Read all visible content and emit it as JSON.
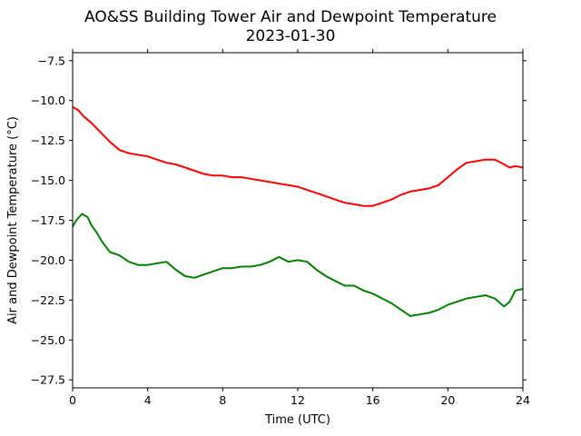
{
  "chart_data": {
    "type": "line",
    "title": "AO&SS Building Tower Air and Dewpoint Temperature",
    "subtitle": "2023-01-30",
    "xlabel": "Time (UTC)",
    "ylabel": "Air and Dewpoint Temperature (°C)",
    "xlim": [
      0,
      24
    ],
    "ylim": [
      -28,
      -7
    ],
    "xticks": [
      0,
      4,
      8,
      12,
      16,
      20,
      24
    ],
    "xtick_labels": [
      "0",
      "4",
      "8",
      "12",
      "16",
      "20",
      "24"
    ],
    "yticks": [
      -27.5,
      -25.0,
      -22.5,
      -20.0,
      -17.5,
      -15.0,
      -12.5,
      -10.0,
      -7.5
    ],
    "ytick_labels": [
      "−27.5",
      "−25.0",
      "−22.5",
      "−20.0",
      "−17.5",
      "−15.0",
      "−12.5",
      "−10.0",
      "−7.5"
    ],
    "grid": false,
    "series": [
      {
        "color": "#ff0000",
        "x": [
          0,
          0.3,
          0.6,
          1.0,
          1.5,
          2.0,
          2.5,
          3.0,
          3.5,
          4.0,
          4.5,
          5.0,
          5.5,
          6.0,
          6.5,
          7.0,
          7.5,
          8.0,
          8.5,
          9.0,
          9.5,
          10.0,
          10.5,
          11.0,
          11.5,
          12.0,
          12.5,
          13.0,
          13.5,
          14.0,
          14.5,
          15.0,
          15.5,
          16.0,
          16.5,
          17.0,
          17.5,
          18.0,
          18.5,
          19.0,
          19.5,
          20.0,
          20.5,
          21.0,
          21.5,
          22.0,
          22.5,
          23.0,
          23.3,
          23.6,
          24.0
        ],
        "values": [
          -10.4,
          -10.6,
          -11.0,
          -11.4,
          -12.0,
          -12.6,
          -13.1,
          -13.3,
          -13.4,
          -13.5,
          -13.7,
          -13.9,
          -14.0,
          -14.2,
          -14.4,
          -14.6,
          -14.7,
          -14.7,
          -14.8,
          -14.8,
          -14.9,
          -15.0,
          -15.1,
          -15.2,
          -15.3,
          -15.4,
          -15.6,
          -15.8,
          -16.0,
          -16.2,
          -16.4,
          -16.5,
          -16.6,
          -16.6,
          -16.4,
          -16.2,
          -15.9,
          -15.7,
          -15.6,
          -15.5,
          -15.3,
          -14.8,
          -14.3,
          -13.9,
          -13.8,
          -13.7,
          -13.7,
          -14.0,
          -14.2,
          -14.1,
          -14.2
        ]
      },
      {
        "color": "#008000",
        "x": [
          0,
          0.2,
          0.5,
          0.8,
          1.0,
          1.3,
          1.6,
          2.0,
          2.5,
          3.0,
          3.5,
          4.0,
          4.5,
          5.0,
          5.5,
          6.0,
          6.5,
          7.0,
          7.5,
          8.0,
          8.5,
          9.0,
          9.5,
          10.0,
          10.5,
          11.0,
          11.5,
          12.0,
          12.5,
          13.0,
          13.5,
          14.0,
          14.5,
          15.0,
          15.5,
          16.0,
          16.5,
          17.0,
          17.5,
          18.0,
          18.5,
          19.0,
          19.5,
          20.0,
          20.5,
          21.0,
          21.5,
          22.0,
          22.5,
          23.0,
          23.3,
          23.6,
          24.0
        ],
        "values": [
          -17.9,
          -17.5,
          -17.1,
          -17.3,
          -17.8,
          -18.3,
          -18.9,
          -19.5,
          -19.7,
          -20.1,
          -20.3,
          -20.3,
          -20.2,
          -20.1,
          -20.6,
          -21.0,
          -21.1,
          -20.9,
          -20.7,
          -20.5,
          -20.5,
          -20.4,
          -20.4,
          -20.3,
          -20.1,
          -19.8,
          -20.1,
          -20.0,
          -20.1,
          -20.6,
          -21.0,
          -21.3,
          -21.6,
          -21.6,
          -21.9,
          -22.1,
          -22.4,
          -22.7,
          -23.1,
          -23.5,
          -23.4,
          -23.3,
          -23.1,
          -22.8,
          -22.6,
          -22.4,
          -22.3,
          -22.2,
          -22.4,
          -22.9,
          -22.6,
          -21.9,
          -21.8
        ]
      }
    ]
  }
}
